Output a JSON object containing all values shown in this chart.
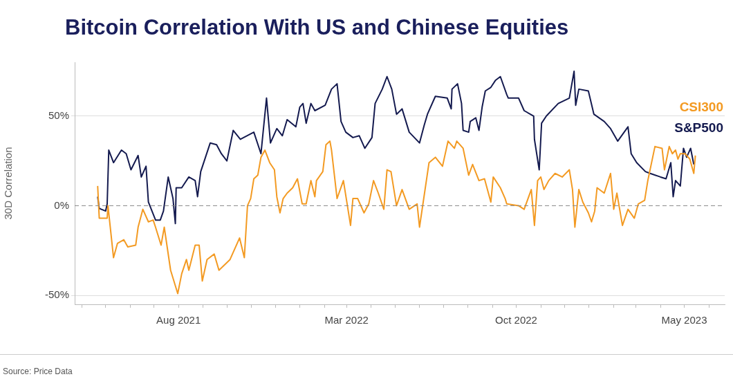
{
  "chart_data": {
    "type": "line",
    "title": "Bitcoin Correlation With US and Chinese Equities",
    "ylabel": "30D Correlation",
    "annotations": [
      "Source: Price Data"
    ],
    "xlim": [
      "2021-03-23",
      "2023-06-21"
    ],
    "xticks": [
      {
        "value": "2021-04-01",
        "label": null
      },
      {
        "value": "2021-05-01",
        "label": null
      },
      {
        "value": "2021-06-01",
        "label": null
      },
      {
        "value": "2021-07-01",
        "label": null
      },
      {
        "value": "2021-08-01",
        "label": "Aug 2021"
      },
      {
        "value": "2021-09-01",
        "label": null
      },
      {
        "value": "2021-10-01",
        "label": null
      },
      {
        "value": "2021-11-01",
        "label": null
      },
      {
        "value": "2021-12-01",
        "label": null
      },
      {
        "value": "2022-01-01",
        "label": null
      },
      {
        "value": "2022-02-01",
        "label": null
      },
      {
        "value": "2022-03-01",
        "label": "Mar 2022"
      },
      {
        "value": "2022-04-01",
        "label": null
      },
      {
        "value": "2022-05-01",
        "label": null
      },
      {
        "value": "2022-06-01",
        "label": null
      },
      {
        "value": "2022-07-01",
        "label": null
      },
      {
        "value": "2022-08-01",
        "label": null
      },
      {
        "value": "2022-09-01",
        "label": null
      },
      {
        "value": "2022-10-01",
        "label": "Oct 2022"
      },
      {
        "value": "2022-11-01",
        "label": null
      },
      {
        "value": "2022-12-01",
        "label": null
      },
      {
        "value": "2023-01-01",
        "label": null
      },
      {
        "value": "2023-02-01",
        "label": null
      },
      {
        "value": "2023-03-01",
        "label": null
      },
      {
        "value": "2023-04-01",
        "label": null
      },
      {
        "value": "2023-05-01",
        "label": "May 2023"
      },
      {
        "value": "2023-06-01",
        "label": null
      }
    ],
    "ylim": [
      -55,
      80
    ],
    "yticks": [
      {
        "value": -50,
        "label": "-50%"
      },
      {
        "value": 0,
        "label": "0%"
      },
      {
        "value": 50,
        "label": "50%"
      }
    ],
    "grid": "y",
    "legend": "right",
    "marker": "none",
    "line_style": "solid",
    "ref_lines": [
      {
        "axis": "y",
        "value": 0,
        "label": null,
        "color": "#888888",
        "line_style": "dashed"
      }
    ],
    "series": [
      {
        "name": "CSI300",
        "color": "#f39a22",
        "x": [
          "2021-04-21",
          "2021-04-23",
          "2021-05-03",
          "2021-05-04",
          "2021-05-11",
          "2021-05-16",
          "2021-05-24",
          "2021-05-29",
          "2021-06-08",
          "2021-06-11",
          "2021-06-17",
          "2021-06-24",
          "2021-06-30",
          "2021-07-03",
          "2021-07-10",
          "2021-07-14",
          "2021-07-22",
          "2021-07-31",
          "2021-08-05",
          "2021-08-11",
          "2021-08-14",
          "2021-08-22",
          "2021-08-27",
          "2021-08-31",
          "2021-09-06",
          "2021-09-15",
          "2021-09-21",
          "2021-10-05",
          "2021-10-17",
          "2021-10-23",
          "2021-10-27",
          "2021-10-31",
          "2021-11-04",
          "2021-11-09",
          "2021-11-13",
          "2021-11-18",
          "2021-11-24",
          "2021-11-30",
          "2021-12-03",
          "2021-12-07",
          "2021-12-11",
          "2021-12-16",
          "2021-12-23",
          "2021-12-29",
          "2022-01-04",
          "2022-01-09",
          "2022-01-15",
          "2022-01-20",
          "2022-01-22",
          "2022-01-30",
          "2022-02-03",
          "2022-02-08",
          "2022-02-10",
          "2022-02-17",
          "2022-02-25",
          "2022-03-06",
          "2022-03-09",
          "2022-03-15",
          "2022-03-23",
          "2022-03-29",
          "2022-04-04",
          "2022-04-10",
          "2022-04-17",
          "2022-04-21",
          "2022-04-26",
          "2022-05-03",
          "2022-05-10",
          "2022-05-19",
          "2022-05-29",
          "2022-06-01",
          "2022-06-13",
          "2022-06-21",
          "2022-06-30",
          "2022-07-07",
          "2022-07-15",
          "2022-07-18",
          "2022-07-26",
          "2022-08-02",
          "2022-08-07",
          "2022-08-15",
          "2022-08-22",
          "2022-08-30",
          "2022-09-02",
          "2022-09-11",
          "2022-09-17",
          "2022-09-19",
          "2022-10-04",
          "2022-10-11",
          "2022-10-20",
          "2022-10-24",
          "2022-10-28",
          "2022-11-01",
          "2022-11-05",
          "2022-11-11",
          "2022-11-19",
          "2022-11-28",
          "2022-12-07",
          "2022-12-11",
          "2022-12-14",
          "2022-12-19",
          "2022-12-24",
          "2022-12-31",
          "2023-01-04",
          "2023-01-08",
          "2023-01-11",
          "2023-01-20",
          "2023-01-28",
          "2023-02-01",
          "2023-02-05",
          "2023-02-12",
          "2023-02-19",
          "2023-02-27",
          "2023-03-04",
          "2023-03-12",
          "2023-03-16",
          "2023-03-25",
          "2023-04-03",
          "2023-04-06",
          "2023-04-12",
          "2023-04-16",
          "2023-04-20",
          "2023-04-23",
          "2023-04-26",
          "2023-05-02",
          "2023-05-08",
          "2023-05-13",
          "2023-05-15"
        ],
        "values": [
          11,
          -7,
          -7,
          0,
          -29,
          -21,
          -19,
          -23,
          -22,
          -12,
          -2,
          -9,
          -8,
          -12,
          -22,
          -12,
          -36,
          -49,
          -38,
          -30,
          -36,
          -22,
          -22,
          -42,
          -30,
          -27,
          -36,
          -30,
          -18,
          -29,
          0,
          4,
          15,
          17,
          27,
          31,
          24,
          20,
          5,
          -4,
          4,
          7,
          10,
          15,
          1,
          1,
          14,
          5,
          14,
          19,
          34,
          36,
          31,
          4,
          14,
          -11,
          4,
          4,
          -4,
          1,
          14,
          7,
          -2,
          20,
          19,
          0,
          9,
          -2,
          1,
          -12,
          24,
          27,
          22,
          36,
          32,
          36,
          32,
          17,
          23,
          14,
          15,
          2,
          16,
          10,
          4,
          1,
          0,
          -2,
          9,
          -11,
          14,
          16,
          9,
          14,
          18,
          16,
          20,
          9,
          -12,
          9,
          2,
          -4,
          -9,
          -3,
          10,
          7,
          18,
          -2,
          7,
          -11,
          -2,
          -7,
          1,
          3,
          14,
          33,
          32,
          20,
          33,
          29,
          31,
          26,
          29,
          29,
          26,
          18,
          28
        ]
      },
      {
        "name": "S&P500",
        "color": "#141a4f",
        "x": [
          "2021-04-21",
          "2021-04-23",
          "2021-05-01",
          "2021-05-03",
          "2021-05-05",
          "2021-05-11",
          "2021-05-21",
          "2021-05-27",
          "2021-06-02",
          "2021-06-11",
          "2021-06-15",
          "2021-06-21",
          "2021-06-24",
          "2021-07-03",
          "2021-07-09",
          "2021-07-13",
          "2021-07-19",
          "2021-07-25",
          "2021-07-28",
          "2021-07-29",
          "2021-08-05",
          "2021-08-14",
          "2021-08-22",
          "2021-08-25",
          "2021-08-29",
          "2021-09-04",
          "2021-09-10",
          "2021-09-18",
          "2021-09-24",
          "2021-10-01",
          "2021-10-09",
          "2021-10-18",
          "2021-11-04",
          "2021-11-13",
          "2021-11-20",
          "2021-11-25",
          "2021-12-03",
          "2021-12-10",
          "2021-12-16",
          "2021-12-27",
          "2022-01-01",
          "2022-01-05",
          "2022-01-09",
          "2022-01-15",
          "2022-01-20",
          "2022-02-02",
          "2022-02-10",
          "2022-02-17",
          "2022-02-22",
          "2022-02-28",
          "2022-03-09",
          "2022-03-17",
          "2022-03-24",
          "2022-04-02",
          "2022-04-06",
          "2022-04-15",
          "2022-04-21",
          "2022-04-27",
          "2022-05-03",
          "2022-05-10",
          "2022-05-19",
          "2022-06-01",
          "2022-06-07",
          "2022-06-11",
          "2022-06-21",
          "2022-07-06",
          "2022-07-11",
          "2022-07-12",
          "2022-07-19",
          "2022-07-24",
          "2022-07-26",
          "2022-08-02",
          "2022-08-04",
          "2022-08-11",
          "2022-08-15",
          "2022-08-19",
          "2022-08-23",
          "2022-08-30",
          "2022-09-05",
          "2022-09-11",
          "2022-09-19",
          "2022-09-21",
          "2022-10-04",
          "2022-10-11",
          "2022-10-23",
          "2022-10-24",
          "2022-10-30",
          "2022-11-02",
          "2022-11-08",
          "2022-11-23",
          "2022-12-07",
          "2022-12-13",
          "2022-12-15",
          "2022-12-19",
          "2022-12-31",
          "2023-01-07",
          "2023-01-20",
          "2023-01-28",
          "2023-02-06",
          "2023-02-19",
          "2023-02-23",
          "2023-03-02",
          "2023-03-13",
          "2023-03-19",
          "2023-04-01",
          "2023-04-08",
          "2023-04-14",
          "2023-04-17",
          "2023-04-20",
          "2023-04-26",
          "2023-04-30",
          "2023-05-04",
          "2023-05-09",
          "2023-05-13"
        ],
        "values": [
          5,
          -1.5,
          -3,
          1,
          31,
          24,
          31,
          29,
          20,
          28,
          16,
          22,
          2,
          -8,
          -8,
          -3,
          16,
          4,
          -10,
          10,
          10,
          16,
          14,
          5,
          19,
          27,
          35,
          34,
          29,
          25,
          42,
          37,
          41,
          29,
          60,
          35,
          43,
          39,
          48,
          44,
          55,
          57,
          46,
          57,
          53,
          56,
          65,
          68,
          47,
          41,
          38,
          39,
          32,
          38,
          57,
          65,
          72,
          65,
          51,
          54,
          41,
          35,
          45,
          51,
          61,
          60,
          54,
          65,
          68,
          57,
          42,
          41,
          47,
          49,
          42,
          55,
          64,
          66,
          70,
          72,
          62,
          60,
          60,
          53,
          50,
          37,
          20,
          46,
          50,
          57,
          60,
          75,
          56,
          65,
          64,
          51,
          47,
          43,
          36,
          44,
          29,
          24,
          19,
          18,
          16,
          15,
          24,
          5,
          14,
          11,
          32,
          27,
          32,
          23
        ]
      }
    ]
  }
}
